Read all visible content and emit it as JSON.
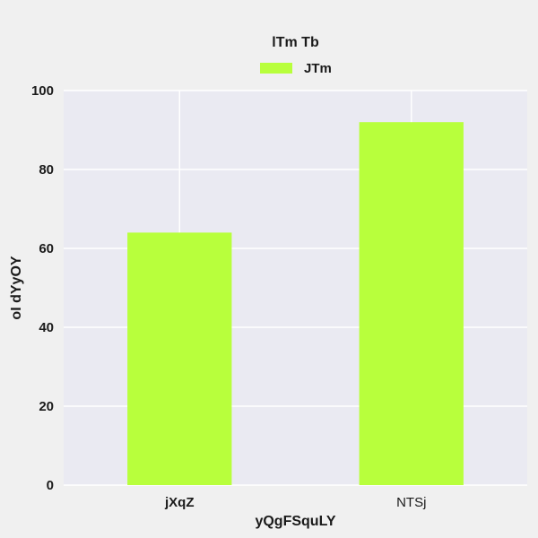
{
  "chart_data": {
    "type": "bar",
    "title": "",
    "xlabel": "yQgFSquLY",
    "ylabel": "oI dYyOY",
    "categories": [
      "jXqZ",
      "NTSj"
    ],
    "series": [
      {
        "name": "JTm",
        "values": [
          64,
          92
        ]
      }
    ],
    "ylim": [
      0,
      100
    ],
    "yticks": [
      0,
      20,
      40,
      60,
      80,
      100
    ],
    "grid": true,
    "legend": {
      "title": "lTm Tb",
      "placement": "top-center"
    },
    "colors": {
      "bar": "#b8ff3c",
      "plot_background": "#eaeaf2",
      "grid": "#ffffff"
    }
  }
}
